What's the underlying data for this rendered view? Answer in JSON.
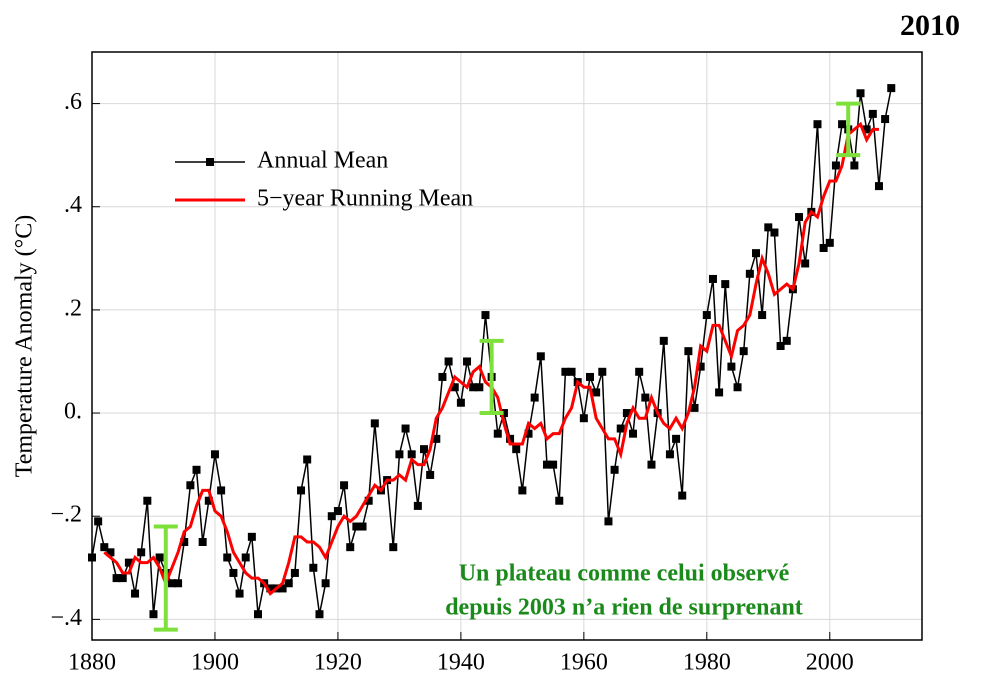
{
  "chart_data": {
    "type": "line",
    "corner_label": "2010",
    "ylabel": "Temperature Anomaly (°C)",
    "annotation": [
      "Un plateau comme celui observé",
      "depuis 2003 n’a rien de surprenant"
    ],
    "annotation_color": "#1a8a1a",
    "x": [
      1880,
      1881,
      1882,
      1883,
      1884,
      1885,
      1886,
      1887,
      1888,
      1889,
      1890,
      1891,
      1892,
      1893,
      1894,
      1895,
      1896,
      1897,
      1898,
      1899,
      1900,
      1901,
      1902,
      1903,
      1904,
      1905,
      1906,
      1907,
      1908,
      1909,
      1910,
      1911,
      1912,
      1913,
      1914,
      1915,
      1916,
      1917,
      1918,
      1919,
      1920,
      1921,
      1922,
      1923,
      1924,
      1925,
      1926,
      1927,
      1928,
      1929,
      1930,
      1931,
      1932,
      1933,
      1934,
      1935,
      1936,
      1937,
      1938,
      1939,
      1940,
      1941,
      1942,
      1943,
      1944,
      1945,
      1946,
      1947,
      1948,
      1949,
      1950,
      1951,
      1952,
      1953,
      1954,
      1955,
      1956,
      1957,
      1958,
      1959,
      1960,
      1961,
      1962,
      1963,
      1964,
      1965,
      1966,
      1967,
      1968,
      1969,
      1970,
      1971,
      1972,
      1973,
      1974,
      1975,
      1976,
      1977,
      1978,
      1979,
      1980,
      1981,
      1982,
      1983,
      1984,
      1985,
      1986,
      1987,
      1988,
      1989,
      1990,
      1991,
      1992,
      1993,
      1994,
      1995,
      1996,
      1997,
      1998,
      1999,
      2000,
      2001,
      2002,
      2003,
      2004,
      2005,
      2006,
      2007,
      2008,
      2009,
      2010
    ],
    "series": [
      {
        "name": "Annual Mean",
        "color": "#000000",
        "marker": "square",
        "values": [
          -0.28,
          -0.21,
          -0.26,
          -0.27,
          -0.32,
          -0.32,
          -0.29,
          -0.35,
          -0.27,
          -0.17,
          -0.39,
          -0.28,
          -0.31,
          -0.33,
          -0.33,
          -0.25,
          -0.14,
          -0.11,
          -0.25,
          -0.17,
          -0.08,
          -0.15,
          -0.28,
          -0.31,
          -0.35,
          -0.28,
          -0.24,
          -0.39,
          -0.33,
          -0.34,
          -0.34,
          -0.34,
          -0.33,
          -0.31,
          -0.15,
          -0.09,
          -0.3,
          -0.39,
          -0.33,
          -0.2,
          -0.19,
          -0.14,
          -0.26,
          -0.22,
          -0.22,
          -0.17,
          -0.02,
          -0.15,
          -0.13,
          -0.26,
          -0.08,
          -0.03,
          -0.08,
          -0.18,
          -0.07,
          -0.12,
          -0.05,
          0.07,
          0.1,
          0.05,
          0.02,
          0.1,
          0.05,
          0.05,
          0.19,
          0.07,
          -0.04,
          0,
          -0.05,
          -0.07,
          -0.15,
          -0.04,
          0.03,
          0.11,
          -0.1,
          -0.1,
          -0.17,
          0.08,
          0.08,
          0.06,
          -0.01,
          0.07,
          0.04,
          0.08,
          -0.21,
          -0.11,
          -0.03,
          0,
          -0.04,
          0.08,
          0.03,
          -0.1,
          0,
          0.14,
          -0.08,
          -0.05,
          -0.16,
          0.12,
          0.01,
          0.09,
          0.19,
          0.26,
          0.04,
          0.25,
          0.09,
          0.05,
          0.12,
          0.27,
          0.31,
          0.19,
          0.36,
          0.35,
          0.13,
          0.14,
          0.24,
          0.38,
          0.29,
          0.39,
          0.56,
          0.32,
          0.33,
          0.48,
          0.56,
          0.55,
          0.48,
          0.62,
          0.55,
          0.58,
          0.44,
          0.57,
          0.63
        ]
      },
      {
        "name": "5−year Running Mean",
        "color": "#ff0000",
        "values": [
          null,
          null,
          -0.27,
          -0.28,
          -0.29,
          -0.31,
          -0.31,
          -0.28,
          -0.29,
          -0.29,
          -0.28,
          -0.3,
          -0.33,
          -0.3,
          -0.27,
          -0.23,
          -0.22,
          -0.18,
          -0.15,
          -0.15,
          -0.19,
          -0.2,
          -0.23,
          -0.27,
          -0.29,
          -0.31,
          -0.32,
          -0.32,
          -0.33,
          -0.35,
          -0.34,
          -0.33,
          -0.29,
          -0.24,
          -0.24,
          -0.25,
          -0.25,
          -0.26,
          -0.28,
          -0.25,
          -0.22,
          -0.2,
          -0.21,
          -0.2,
          -0.18,
          -0.16,
          -0.14,
          -0.15,
          -0.13,
          -0.13,
          -0.12,
          -0.13,
          -0.09,
          -0.1,
          -0.1,
          -0.07,
          -0.01,
          0.01,
          0.04,
          0.07,
          0.06,
          0.05,
          0.08,
          0.09,
          0.06,
          0.05,
          0.03,
          -0.02,
          -0.06,
          -0.06,
          -0.06,
          -0.02,
          -0.03,
          -0.02,
          -0.05,
          -0.04,
          -0.04,
          -0.01,
          0.01,
          0.06,
          0.05,
          0.05,
          -0.01,
          -0.03,
          -0.05,
          -0.05,
          -0.08,
          -0.02,
          0.01,
          -0.01,
          -0.01,
          0.03,
          0,
          -0.02,
          -0.03,
          -0.01,
          -0.03,
          0,
          0.05,
          0.13,
          0.12,
          0.17,
          0.17,
          0.14,
          0.11,
          0.16,
          0.17,
          0.19,
          0.25,
          0.3,
          0.27,
          0.23,
          0.24,
          0.25,
          0.24,
          0.29,
          0.37,
          0.39,
          0.38,
          0.42,
          0.45,
          0.45,
          0.48,
          0.54,
          0.55,
          0.56,
          0.53,
          0.55,
          0.55,
          null,
          null
        ]
      }
    ],
    "error_bars": [
      {
        "x": 1892,
        "low": -0.42,
        "high": -0.22
      },
      {
        "x": 1945,
        "low": 0,
        "high": 0.14
      },
      {
        "x": 2003,
        "low": 0.5,
        "high": 0.6
      }
    ],
    "error_bar_color": "#7ee03a",
    "xlim": [
      1880,
      2015
    ],
    "ylim": [
      -0.44,
      0.7
    ],
    "xticks": [
      1880,
      1900,
      1920,
      1940,
      1960,
      1980,
      2000
    ],
    "yticks": [
      {
        "value": -0.4,
        "label": "−.4"
      },
      {
        "value": -0.2,
        "label": "−.2"
      },
      {
        "value": 0,
        "label": "0."
      },
      {
        "value": 0.2,
        "label": ".2"
      },
      {
        "value": 0.4,
        "label": ".4"
      },
      {
        "value": 0.6,
        "label": ".6"
      }
    ],
    "grid": true,
    "legend": "upper left"
  }
}
